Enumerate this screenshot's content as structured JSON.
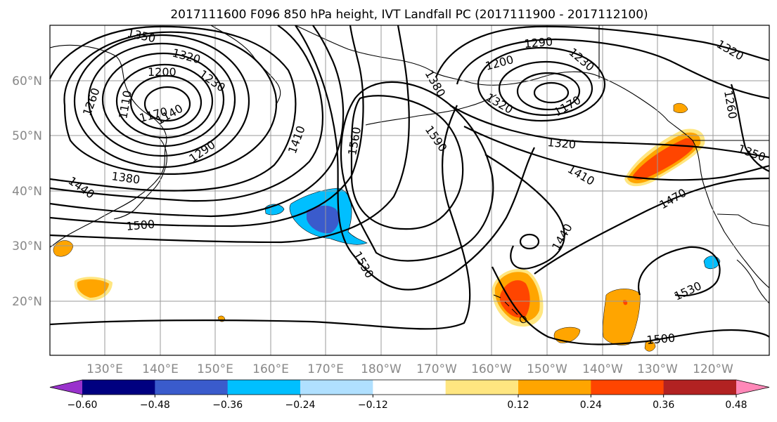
{
  "title": "2017111600 F096 850 hPa height, IVT Landfall PC (2017111900 - 2017112100)",
  "lat_labels": [
    "60°N",
    "50°N",
    "40°N",
    "30°N",
    "20°N"
  ],
  "lon_labels": [
    "130°E",
    "140°E",
    "150°E",
    "160°E",
    "170°E",
    "180°W",
    "170°W",
    "160°W",
    "150°W",
    "140°W",
    "130°W",
    "120°W"
  ],
  "contour_labels": [
    "1350",
    "1320",
    "1290",
    "1200",
    "1230",
    "1260",
    "1170",
    "1140",
    "1110",
    "1290",
    "1380",
    "1410",
    "1440",
    "1500",
    "1560",
    "1380",
    "1590",
    "1260",
    "1290",
    "1200",
    "1230",
    "1170",
    "1320",
    "1410",
    "1470",
    "1440",
    "1530",
    "1530",
    "1500",
    "1320",
    "1260",
    "1350"
  ],
  "colorbar": {
    "ticks": [
      "−0.60",
      "−0.48",
      "−0.36",
      "−0.24",
      "−0.12",
      "0.12",
      "0.24",
      "0.36",
      "0.48",
      "0.60"
    ],
    "colors": [
      "#9932cc",
      "#000080",
      "#3a5bcc",
      "#00bfff",
      "#b0e0ff",
      "#ffffff",
      "#ffe680",
      "#ffa500",
      "#ff4500",
      "#b22222",
      "#ff88b8"
    ]
  }
}
